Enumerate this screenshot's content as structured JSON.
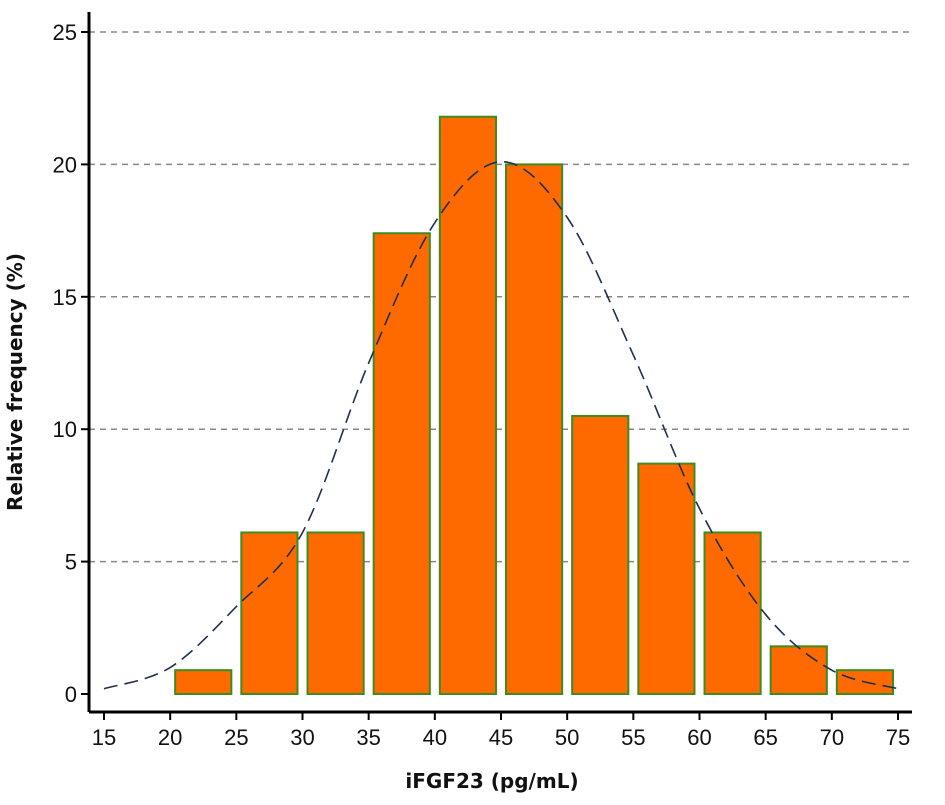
{
  "chart_data": {
    "type": "bar",
    "title": "",
    "xlabel": "iFGF23 (pg/mL)",
    "ylabel": "Relative frequency (%)",
    "xlim": [
      15,
      75
    ],
    "ylim": [
      0,
      25
    ],
    "x_ticks": [
      15,
      20,
      25,
      30,
      35,
      40,
      45,
      50,
      55,
      60,
      65,
      70,
      75
    ],
    "y_ticks": [
      0,
      5,
      10,
      15,
      20,
      25
    ],
    "grid": "horizontal dashed",
    "bins": [
      {
        "x0": 20,
        "x1": 25,
        "value": 0.9
      },
      {
        "x0": 25,
        "x1": 30,
        "value": 6.1
      },
      {
        "x0": 30,
        "x1": 35,
        "value": 6.1
      },
      {
        "x0": 35,
        "x1": 40,
        "value": 17.4
      },
      {
        "x0": 40,
        "x1": 45,
        "value": 21.8
      },
      {
        "x0": 45,
        "x1": 50,
        "value": 20.0
      },
      {
        "x0": 50,
        "x1": 55,
        "value": 10.5
      },
      {
        "x0": 55,
        "x1": 60,
        "value": 8.7
      },
      {
        "x0": 60,
        "x1": 65,
        "value": 6.1
      },
      {
        "x0": 65,
        "x1": 70,
        "value": 1.8
      },
      {
        "x0": 70,
        "x1": 75,
        "value": 0.9
      }
    ],
    "fit_curve": {
      "type": "normal",
      "style": "dashed",
      "points": [
        [
          15,
          0.2
        ],
        [
          20,
          1.0
        ],
        [
          25,
          3.3
        ],
        [
          30,
          6.1
        ],
        [
          35,
          12.5
        ],
        [
          40,
          17.8
        ],
        [
          45,
          20.1
        ],
        [
          50,
          18.0
        ],
        [
          55,
          12.8
        ],
        [
          60,
          7.0
        ],
        [
          65,
          3.0
        ],
        [
          70,
          0.9
        ],
        [
          75,
          0.2
        ]
      ]
    },
    "colors": {
      "bar_fill": "#ff6a00",
      "bar_stroke": "#3d8c1e",
      "grid": "#888888",
      "curve": "#1f3050",
      "axis": "#000000"
    }
  }
}
